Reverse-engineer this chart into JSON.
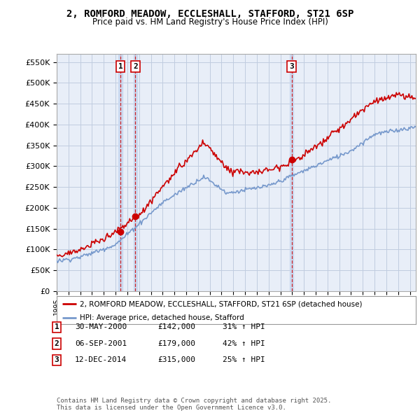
{
  "title": "2, ROMFORD MEADOW, ECCLESHALL, STAFFORD, ST21 6SP",
  "subtitle": "Price paid vs. HM Land Registry's House Price Index (HPI)",
  "ylim": [
    0,
    570000
  ],
  "yticks": [
    0,
    50000,
    100000,
    150000,
    200000,
    250000,
    300000,
    350000,
    400000,
    450000,
    500000,
    550000
  ],
  "ytick_labels": [
    "£0",
    "£50K",
    "£100K",
    "£150K",
    "£200K",
    "£250K",
    "£300K",
    "£350K",
    "£400K",
    "£450K",
    "£500K",
    "£550K"
  ],
  "legend_label_red": "2, ROMFORD MEADOW, ECCLESHALL, STAFFORD, ST21 6SP (detached house)",
  "legend_label_blue": "HPI: Average price, detached house, Stafford",
  "red_color": "#cc0000",
  "blue_color": "#7799cc",
  "chart_bg": "#e8eef8",
  "transaction_color": "#cc0000",
  "vline_color": "#cc0000",
  "vband_color": "#c8d8f0",
  "background_color": "#ffffff",
  "grid_color": "#c0cce0",
  "transactions": [
    {
      "label": "1",
      "date_num": 2000.41,
      "price": 142000
    },
    {
      "label": "2",
      "date_num": 2001.68,
      "price": 179000
    },
    {
      "label": "3",
      "date_num": 2014.95,
      "price": 315000
    }
  ],
  "table_rows": [
    [
      "1",
      "30-MAY-2000",
      "£142,000",
      "31% ↑ HPI"
    ],
    [
      "2",
      "06-SEP-2001",
      "£179,000",
      "42% ↑ HPI"
    ],
    [
      "3",
      "12-DEC-2014",
      "£315,000",
      "25% ↑ HPI"
    ]
  ],
  "footer": "Contains HM Land Registry data © Crown copyright and database right 2025.\nThis data is licensed under the Open Government Licence v3.0.",
  "xmin": 1995.0,
  "xmax": 2025.5
}
